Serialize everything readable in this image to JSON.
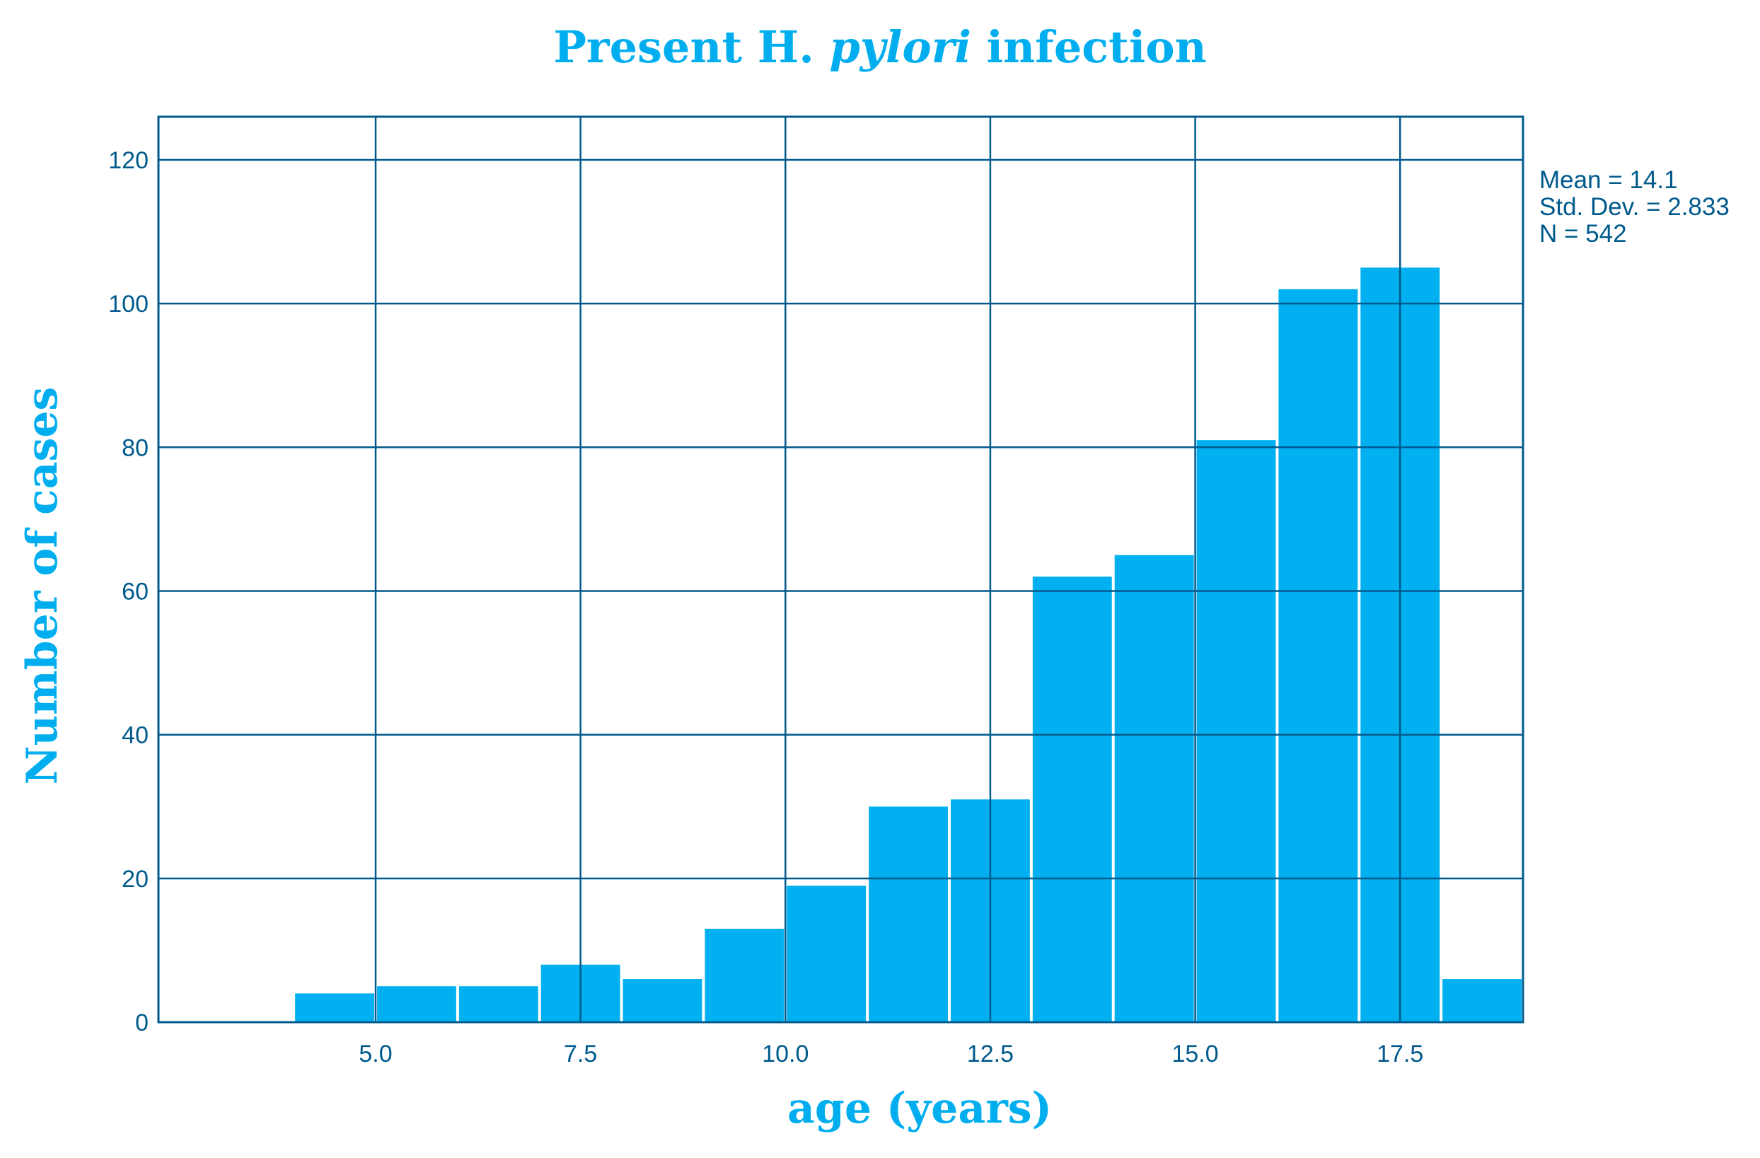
{
  "chart_data": {
    "type": "bar",
    "title_prefix": "Present H. ",
    "title_italic": "pylori",
    "title_suffix": " infection",
    "xlabel": "age (years)",
    "ylabel": "Number of cases",
    "bin_width": 1,
    "bins": [
      {
        "center": 4.5,
        "value": 4
      },
      {
        "center": 5.5,
        "value": 5
      },
      {
        "center": 6.5,
        "value": 5
      },
      {
        "center": 7.5,
        "value": 8
      },
      {
        "center": 8.5,
        "value": 6
      },
      {
        "center": 9.5,
        "value": 13
      },
      {
        "center": 10.5,
        "value": 19
      },
      {
        "center": 11.5,
        "value": 30
      },
      {
        "center": 12.5,
        "value": 31
      },
      {
        "center": 13.5,
        "value": 62
      },
      {
        "center": 14.5,
        "value": 65
      },
      {
        "center": 15.5,
        "value": 81
      },
      {
        "center": 16.5,
        "value": 102
      },
      {
        "center": 17.5,
        "value": 105
      },
      {
        "center": 18.5,
        "value": 6
      }
    ],
    "xlim": [
      2.35,
      19.0
    ],
    "ylim": [
      0,
      126
    ],
    "x_ticks": [
      5.0,
      7.5,
      10.0,
      12.5,
      15.0,
      17.5
    ],
    "x_tick_labels": [
      "5.0",
      "7.5",
      "10.0",
      "12.5",
      "15.0",
      "17.5"
    ],
    "y_ticks": [
      0,
      20,
      40,
      60,
      80,
      100,
      120
    ],
    "y_tick_labels": [
      "0",
      "20",
      "40",
      "60",
      "80",
      "100",
      "120"
    ],
    "grid": true,
    "stats": {
      "mean": "Mean = 14.1",
      "std": "Std. Dev. = 2.833",
      "n": "N = 542"
    },
    "colors": {
      "bar": "#00b0f0",
      "axis": "#005a8c",
      "title": "#00aeef"
    }
  }
}
